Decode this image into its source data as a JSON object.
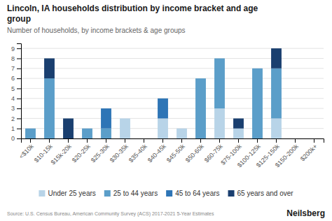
{
  "chart_data": {
    "type": "bar",
    "title": "Lincoln, IA households distribution by income bracket and age\ngroup",
    "subtitle": "Number of households, by income brackets & age groups",
    "annotations": [
      "Source: U.S. Census Bureau, American Community Survey (ACS) 2017-2021 5-Year Estimates",
      "Neilsberg"
    ],
    "categories": [
      "<$10k",
      "$10-15k",
      "$15k-20k",
      "$20-25k",
      "$25-30k",
      "$30-35k",
      "$35-40k",
      "$40-45k",
      "$45-50k",
      "$50-60k",
      "$60-75k",
      "$75-100k",
      "$100-125k",
      "$125-150k",
      "$150-200k",
      "$200k+"
    ],
    "series": [
      {
        "name": "Under 25 years",
        "color": "#b8d4e8",
        "values": [
          0,
          0,
          0,
          0,
          0,
          2,
          0,
          2,
          1,
          0,
          3,
          1,
          0,
          2,
          0,
          0
        ]
      },
      {
        "name": "25 to 44 years",
        "color": "#5b9ec9",
        "values": [
          1,
          6,
          0,
          1,
          1,
          0,
          0,
          0,
          0,
          6,
          5,
          0,
          7,
          5,
          0,
          0
        ]
      },
      {
        "name": "45 to 64 years",
        "color": "#2e75b6",
        "values": [
          0,
          0,
          0,
          0,
          2,
          0,
          0,
          2,
          0,
          0,
          0,
          0,
          0,
          0,
          0,
          0
        ]
      },
      {
        "name": "65 years and over",
        "color": "#1a3f6f",
        "values": [
          0,
          2,
          2,
          0,
          0,
          0,
          0,
          0,
          0,
          0,
          0,
          1,
          0,
          2,
          0,
          0
        ]
      }
    ],
    "stacked": true,
    "ylim": [
      0,
      9.5
    ],
    "yticks": [
      0,
      1,
      2,
      3,
      4,
      5,
      6,
      7,
      8,
      9
    ],
    "grid": true,
    "legend": "bottom"
  }
}
